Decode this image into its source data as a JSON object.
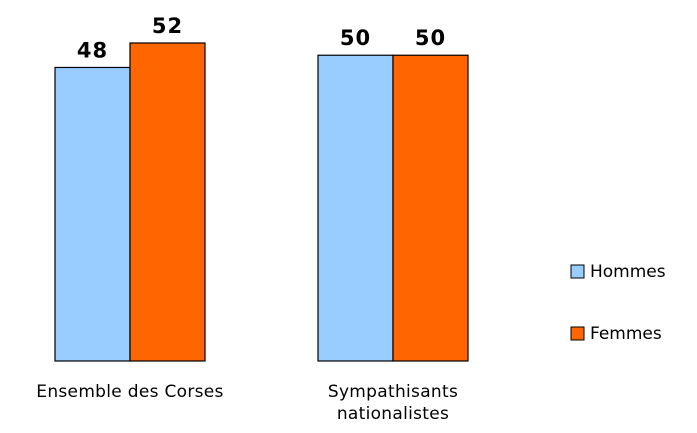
{
  "chart_data": {
    "type": "bar",
    "categories": [
      [
        "Ensemble des Corses"
      ],
      [
        "Sympathisants",
        "nationalistes"
      ]
    ],
    "series": [
      {
        "name": "Hommes",
        "values": [
          48,
          50
        ],
        "color": "#99CCFF"
      },
      {
        "name": "Femmes",
        "values": [
          52,
          50
        ],
        "color": "#FF6600"
      }
    ],
    "ylim": [
      0,
      52
    ],
    "grid": false,
    "legend_position": "right",
    "title": "",
    "xlabel": "",
    "ylabel": ""
  }
}
